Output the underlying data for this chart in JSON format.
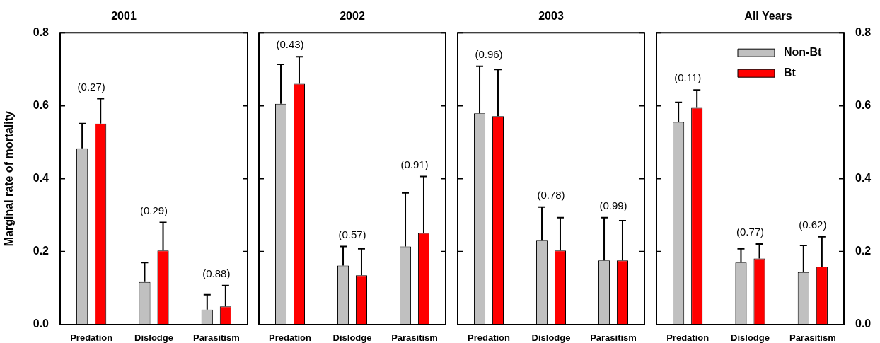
{
  "chart_data": [
    {
      "type": "bar",
      "title": "2001",
      "ylabel": "Marginal rate of mortality",
      "categories": [
        "Predation",
        "Dislodge",
        "Parasitism"
      ],
      "series": [
        {
          "color": "#c0c0c0",
          "values": [
            0.483,
            0.117,
            0.041
          ],
          "errors": [
            0.068,
            0.053,
            0.041
          ]
        },
        {
          "color": "#ff0000",
          "values": [
            0.551,
            0.203,
            0.05
          ],
          "errors": [
            0.068,
            0.077,
            0.057
          ]
        }
      ],
      "ylim": [
        0,
        0.8
      ],
      "yticks": [
        {
          "value": 0,
          "label": "0.0"
        },
        0.2,
        0.4,
        0.6,
        0.8
      ],
      "grid": false,
      "legend": false,
      "annotations": [
        "(0.27)",
        "(0.29)",
        "(0.88)"
      ]
    },
    {
      "type": "bar",
      "title": "2002",
      "categories": [
        "Predation",
        "Dislodge",
        "Parasitism"
      ],
      "series": [
        {
          "color": "#c0c0c0",
          "values": [
            0.605,
            0.162,
            0.214
          ],
          "errors": [
            0.108,
            0.052,
            0.147
          ]
        },
        {
          "color": "#ff0000",
          "values": [
            0.66,
            0.135,
            0.251
          ],
          "errors": [
            0.074,
            0.073,
            0.155
          ]
        }
      ],
      "ylim": [
        0,
        0.8
      ],
      "yticks": [
        0,
        0.2,
        0.4,
        0.6,
        0.8
      ],
      "grid": false,
      "legend": false,
      "tick_labels": "x",
      "annotations": [
        "(0.43)",
        "(0.57)",
        "(0.91)"
      ]
    },
    {
      "type": "bar",
      "title": "2003",
      "categories": [
        "Predation",
        "Dislodge",
        "Parasitism"
      ],
      "series": [
        {
          "color": "#c0c0c0",
          "values": [
            0.579,
            0.23,
            0.176
          ],
          "errors": [
            0.129,
            0.092,
            0.117
          ]
        },
        {
          "color": "#ff0000",
          "values": [
            0.571,
            0.203,
            0.176
          ],
          "errors": [
            0.128,
            0.09,
            0.109
          ]
        }
      ],
      "ylim": [
        0,
        0.8
      ],
      "yticks": [
        0,
        0.2,
        0.4,
        0.6,
        0.8
      ],
      "grid": false,
      "legend": false,
      "tick_labels": "x",
      "annotations": [
        "(0.96)",
        "(0.78)",
        "(0.99)"
      ]
    },
    {
      "type": "bar",
      "title": "All Years",
      "categories": [
        "Predation",
        "Dislodge",
        "Parasitism"
      ],
      "series": [
        {
          "name": "Non-Bt",
          "color": "#c0c0c0",
          "values": [
            0.555,
            0.17,
            0.144
          ],
          "errors": [
            0.054,
            0.038,
            0.073
          ]
        },
        {
          "name": "Bt",
          "color": "#ff0000",
          "values": [
            0.594,
            0.181,
            0.159
          ],
          "errors": [
            0.049,
            0.04,
            0.082
          ]
        }
      ],
      "ylim": [
        0,
        0.8
      ],
      "yticks": [
        {
          "value": 0,
          "label": "0.0"
        },
        0.2,
        0.4,
        0.6,
        0.8
      ],
      "grid": false,
      "legend": "top right",
      "annotations": [
        "(0.11)",
        "(0.77)",
        "(0.62)"
      ]
    }
  ]
}
